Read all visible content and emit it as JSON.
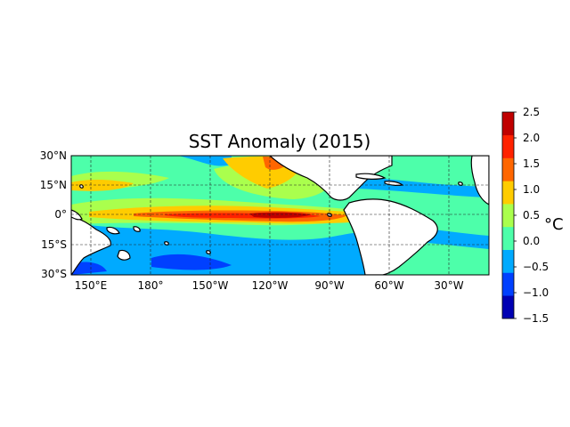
{
  "map": {
    "title": "SST Anomaly (2015)",
    "lat_ticks": [
      "30°N",
      "15°N",
      "0°",
      "15°S",
      "30°S"
    ],
    "lon_ticks": [
      "150°E",
      "180°",
      "150°W",
      "120°W",
      "90°W",
      "60°W",
      "30°W"
    ],
    "extent": {
      "lon_min": 140,
      "lon_max": 350,
      "lat_min": -30,
      "lat_max": 30
    },
    "gridlines": "dashed",
    "land_color": "#ffffff",
    "coastline_color": "#000000"
  },
  "colorbar": {
    "unit_label": "°C",
    "tick_labels": [
      "2.5",
      "2.0",
      "1.5",
      "1.0",
      "0.5",
      "0.0",
      "−0.5",
      "−1.0",
      "−1.5"
    ],
    "levels": [
      -1.5,
      -1.0,
      -0.5,
      0.0,
      0.5,
      1.0,
      1.5,
      2.0,
      2.5
    ],
    "colors": [
      "#0000b3",
      "#0040ff",
      "#00aaff",
      "#4dffaa",
      "#aaff4d",
      "#ffcc00",
      "#ff6600",
      "#ff2200",
      "#c00000"
    ]
  }
}
